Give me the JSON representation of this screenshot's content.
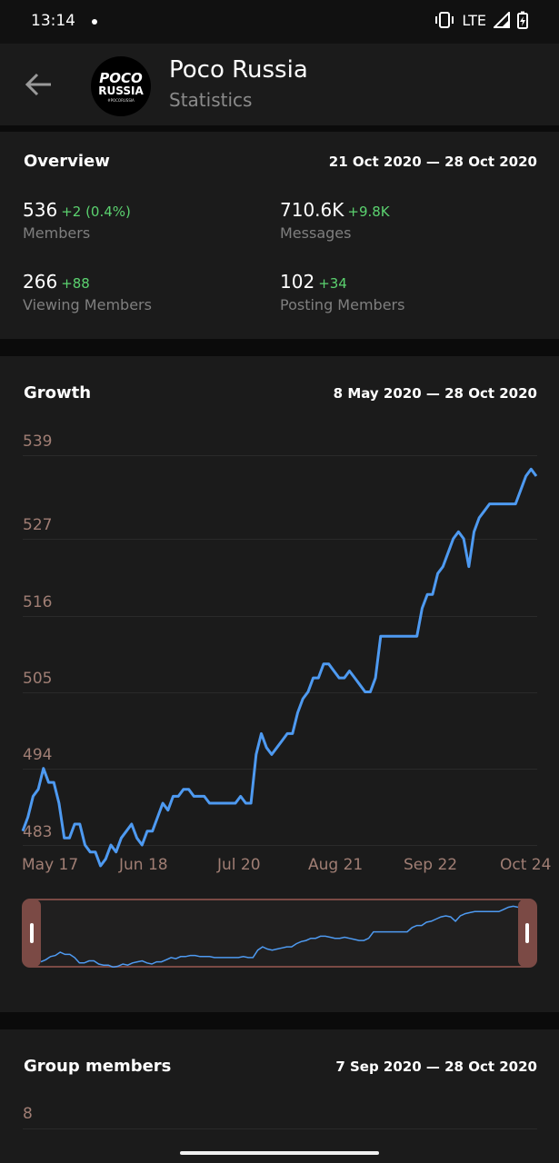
{
  "status_bar": {
    "time": "13:14",
    "network": "LTE"
  },
  "header": {
    "title": "Poco Russia",
    "subtitle": "Statistics",
    "avatar_line1": "POCO",
    "avatar_line2": "RUSSIA",
    "avatar_line3": "#POCORUSSIA"
  },
  "overview": {
    "title": "Overview",
    "range": "21 Oct 2020 — 28 Oct 2020",
    "stats": [
      {
        "value": "536",
        "delta": "+2 (0.4%)",
        "label": "Members"
      },
      {
        "value": "710.6K",
        "delta": "+9.8K",
        "label": "Messages"
      },
      {
        "value": "266",
        "delta": "+88",
        "label": "Viewing Members"
      },
      {
        "value": "102",
        "delta": "+34",
        "label": "Posting Members"
      }
    ]
  },
  "growth": {
    "title": "Growth",
    "range": "8 May 2020 — 28 Oct 2020"
  },
  "group_members": {
    "title": "Group members",
    "range": "7 Sep 2020 — 28 Oct 2020",
    "first_tick": "8"
  },
  "colors": {
    "line": "#4e9af1",
    "accent_green": "#5bd26f",
    "axis_text": "#a07e74",
    "selector": "#7b4a45"
  },
  "chart_data": {
    "type": "line",
    "title": "Growth",
    "y_ticks": [
      "539",
      "527",
      "516",
      "505",
      "494",
      "483"
    ],
    "x_ticks": [
      "May 17",
      "Jun 18",
      "Jul 20",
      "Aug 21",
      "Sep 22",
      "Oct 24"
    ],
    "ylim": [
      483,
      539
    ],
    "grid": true,
    "series": [
      {
        "values": [
          485,
          487,
          490,
          491,
          494,
          492,
          492,
          489,
          484,
          484,
          486,
          486,
          483,
          482,
          482,
          480,
          481,
          483,
          482,
          484,
          485,
          486,
          484,
          483,
          485,
          485,
          487,
          489,
          488,
          490,
          490,
          491,
          491,
          490,
          490,
          490,
          489,
          489,
          489,
          489,
          489,
          489,
          490,
          489,
          489,
          496,
          499,
          497,
          496,
          497,
          498,
          499,
          499,
          502,
          504,
          505,
          507,
          507,
          509,
          509,
          508,
          507,
          507,
          508,
          507,
          506,
          505,
          505,
          507,
          513,
          513,
          513,
          513,
          513,
          513,
          513,
          513,
          517,
          519,
          519,
          522,
          523,
          525,
          527,
          528,
          527,
          523,
          528,
          530,
          531,
          532,
          532,
          532,
          532,
          532,
          532,
          534,
          536,
          537,
          536
        ]
      }
    ]
  }
}
